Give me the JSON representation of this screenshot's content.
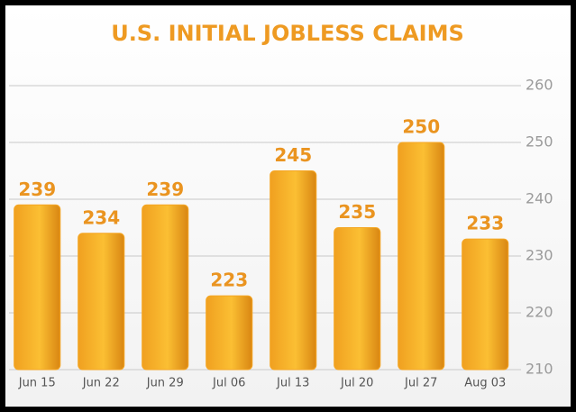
{
  "chart_data": {
    "type": "bar",
    "title": "U.S. INITIAL JOBLESS CLAIMS",
    "categories": [
      "Jun 15",
      "Jun 22",
      "Jun 29",
      "Jul 06",
      "Jul 13",
      "Jul 20",
      "Jul 27",
      "Aug 03"
    ],
    "values": [
      239,
      234,
      239,
      223,
      245,
      235,
      250,
      233
    ],
    "color": "#f5a623",
    "ylim": [
      210,
      260
    ],
    "yticks": [
      210,
      220,
      230,
      240,
      250,
      260
    ],
    "grid": true
  }
}
